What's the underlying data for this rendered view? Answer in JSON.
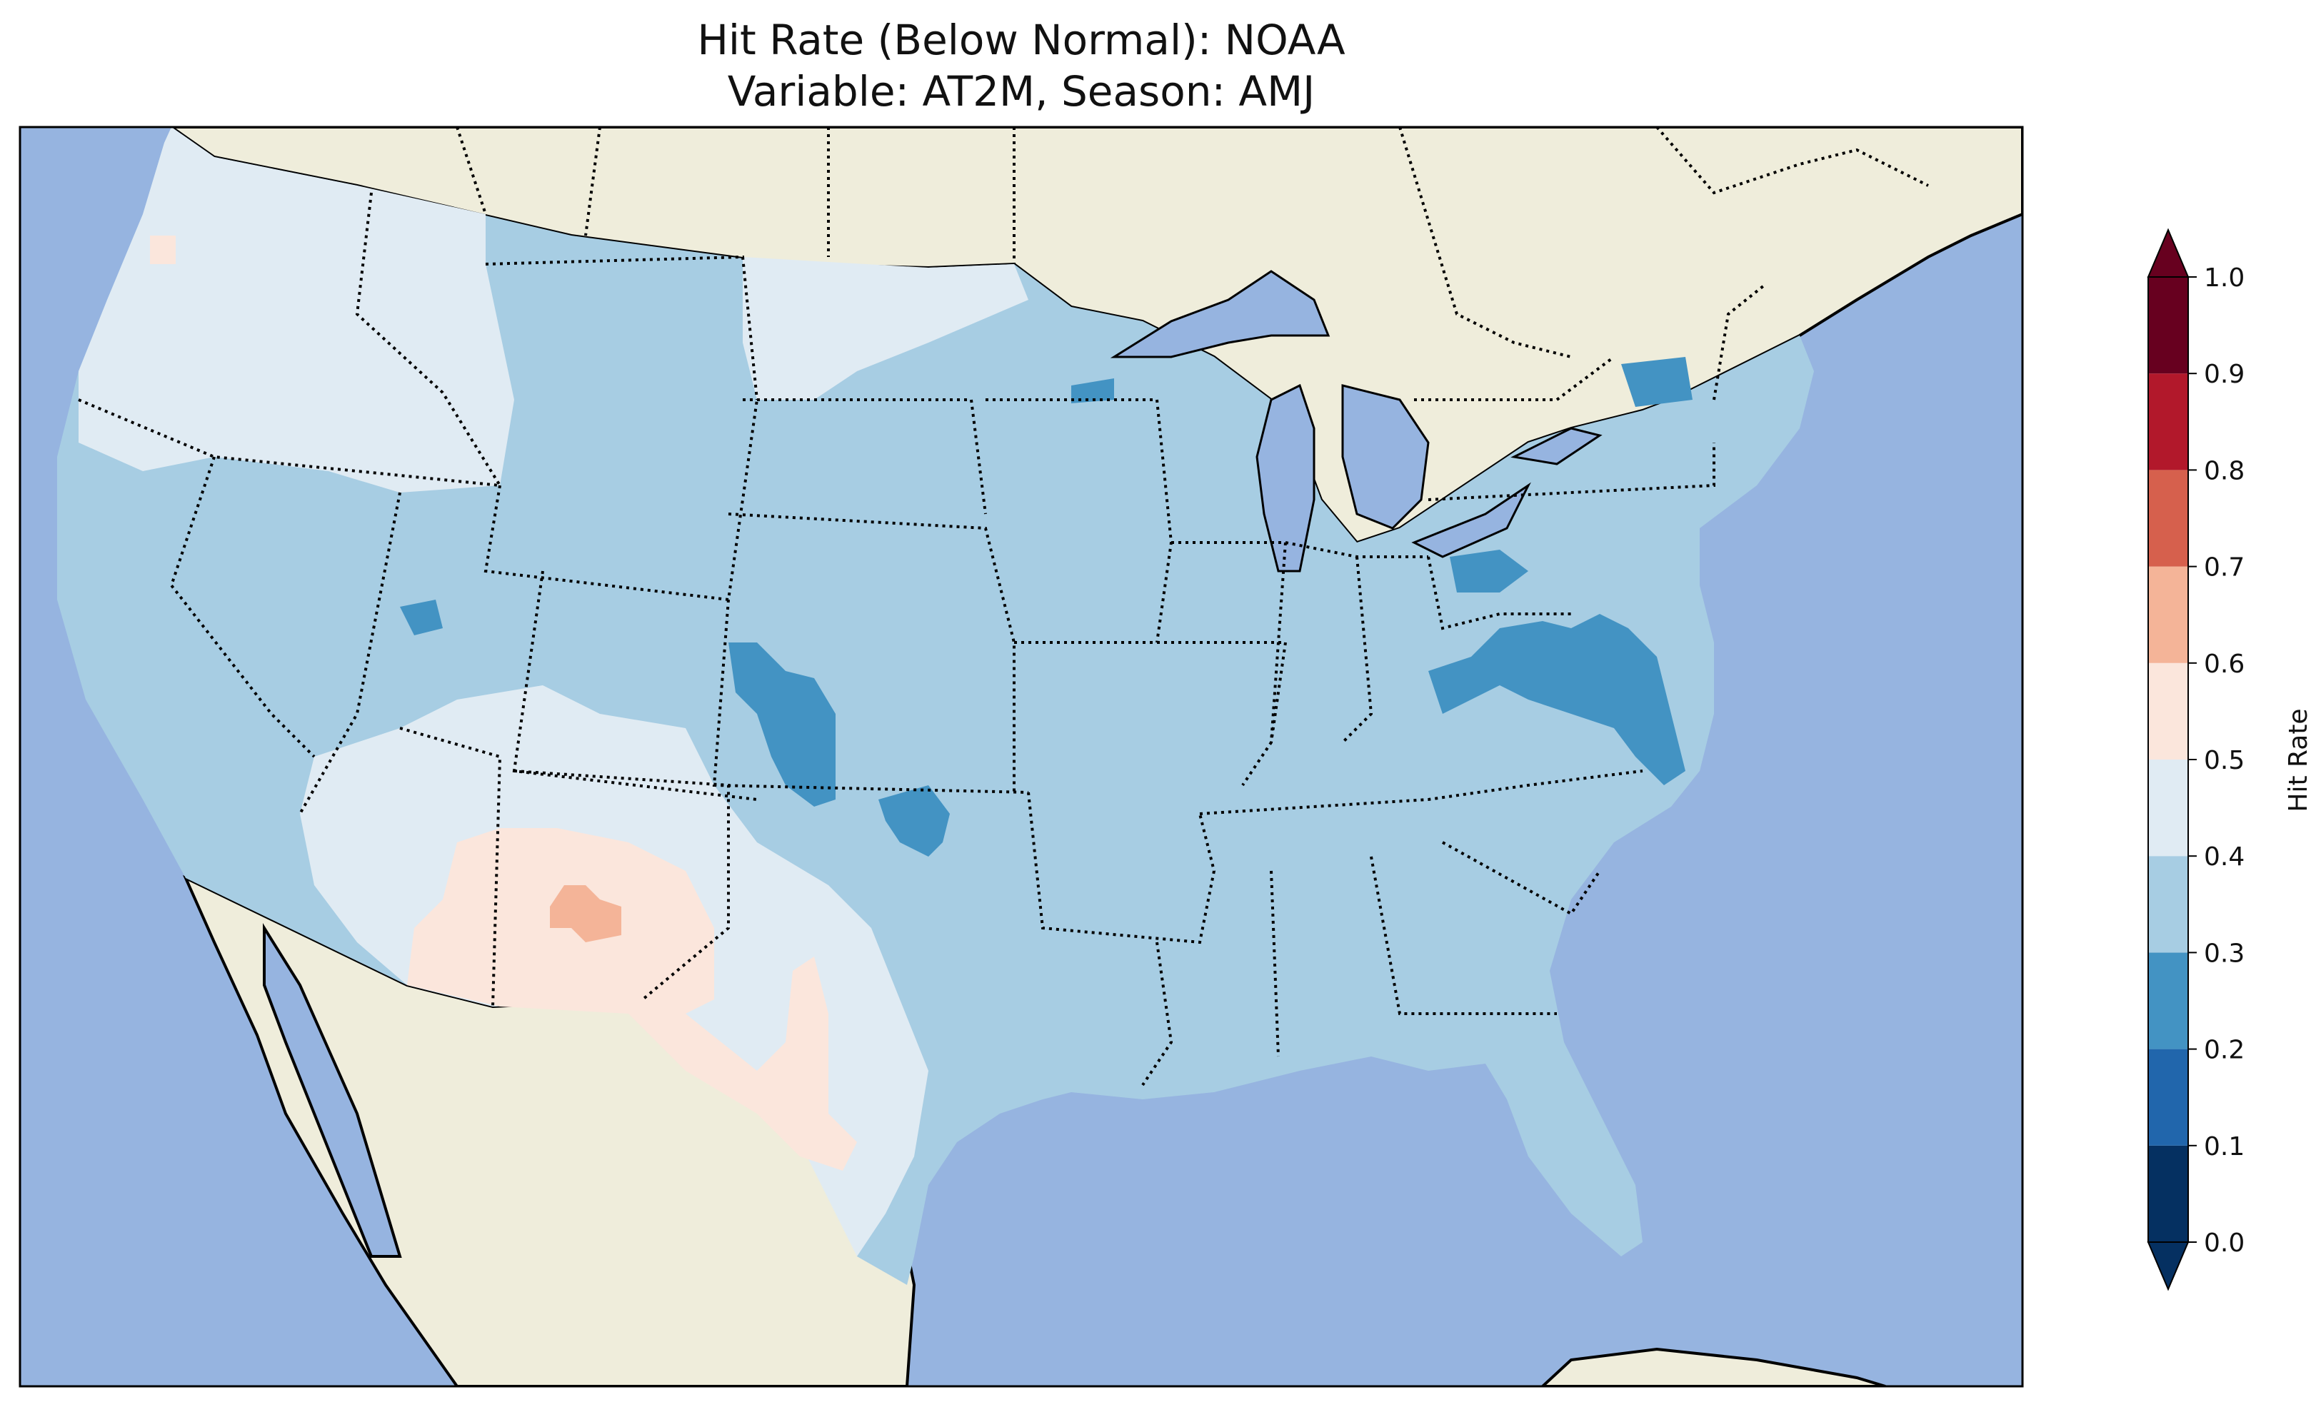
{
  "title": {
    "line1": "Hit Rate (Below Normal): NOAA",
    "line2": "Variable: AT2M, Season: AMJ"
  },
  "colors": {
    "ocean": "#96b4e0",
    "land": "#efeddb",
    "border": "#000000"
  },
  "colorbar": {
    "label": "Hit Rate",
    "ticks": [
      "0.0",
      "0.1",
      "0.2",
      "0.3",
      "0.4",
      "0.5",
      "0.6",
      "0.7",
      "0.8",
      "0.9",
      "1.0"
    ],
    "bins": [
      {
        "range": [
          0.0,
          0.1
        ],
        "color": "#053061"
      },
      {
        "range": [
          0.1,
          0.2
        ],
        "color": "#2166ac"
      },
      {
        "range": [
          0.2,
          0.3
        ],
        "color": "#4393c3"
      },
      {
        "range": [
          0.3,
          0.4
        ],
        "color": "#a7cde3"
      },
      {
        "range": [
          0.4,
          0.5
        ],
        "color": "#e0ebf3"
      },
      {
        "range": [
          0.5,
          0.6
        ],
        "color": "#fbe6dc"
      },
      {
        "range": [
          0.6,
          0.7
        ],
        "color": "#f4b498"
      },
      {
        "range": [
          0.7,
          0.8
        ],
        "color": "#d6604d"
      },
      {
        "range": [
          0.8,
          0.9
        ],
        "color": "#b2182b"
      },
      {
        "range": [
          0.9,
          1.0
        ],
        "color": "#67001f"
      }
    ],
    "extend": "both"
  },
  "map_regions": [
    {
      "name": "Northwest",
      "hit_rate_bin": "0.4-0.5"
    },
    {
      "name": "Northern Rockies and Plains",
      "hit_rate_bin": "0.3-0.4"
    },
    {
      "name": "Southwest",
      "hit_rate_bin": "0.4-0.5"
    },
    {
      "name": "New Mexico / West Texas",
      "hit_rate_bin": "0.5-0.6"
    },
    {
      "name": "Central New Mexico",
      "hit_rate_bin": "0.6-0.7"
    },
    {
      "name": "Eastern Colorado",
      "hit_rate_bin": "0.2-0.3"
    },
    {
      "name": "Virginia / West Virginia",
      "hit_rate_bin": "0.2-0.3"
    },
    {
      "name": "Eastern United States",
      "hit_rate_bin": "0.3-0.4"
    }
  ]
}
